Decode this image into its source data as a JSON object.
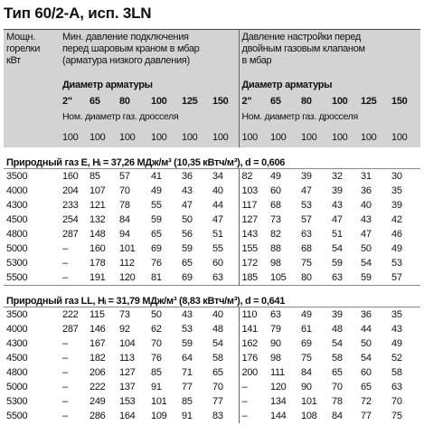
{
  "title": "Тип 60/2-A, исп. 3LN",
  "header": {
    "power": [
      "Мощн.",
      "горелки",
      "кВт"
    ],
    "left": {
      "lines": [
        "Мин. давление подключения",
        "перед шаровым краном в мбар",
        "(арматура низкого давления)"
      ],
      "diameter_label": "Диаметр арматуры",
      "diameters": [
        "2\"",
        "65",
        "80",
        "100",
        "125",
        "150"
      ],
      "throttle_label": "Ном. диаметр газ. дросселя",
      "throttle": [
        "100",
        "100",
        "100",
        "100",
        "100",
        "100"
      ]
    },
    "right": {
      "lines": [
        "Давление настройки перед",
        "двойным газовым клапаном",
        "в мбар"
      ],
      "diameter_label": "Диаметр арматуры",
      "diameters": [
        "2\"",
        "65",
        "80",
        "100",
        "125",
        "150"
      ],
      "throttle_label": "Ном. диаметр газ. дросселя",
      "throttle": [
        "100",
        "100",
        "100",
        "100",
        "100",
        "100"
      ]
    }
  },
  "sections": [
    {
      "title": "Природный газ E, Hᵢ = 37,26 МДж/м³ (10,35 кВтч/м³), d = 0,606",
      "rows": [
        [
          "3500",
          "160",
          "85",
          "57",
          "41",
          "36",
          "34",
          "82",
          "49",
          "39",
          "32",
          "31",
          "30"
        ],
        [
          "4000",
          "204",
          "107",
          "70",
          "49",
          "43",
          "40",
          "103",
          "60",
          "47",
          "39",
          "36",
          "35"
        ],
        [
          "4300",
          "233",
          "121",
          "78",
          "55",
          "47",
          "44",
          "117",
          "68",
          "53",
          "43",
          "40",
          "39"
        ],
        [
          "4500",
          "254",
          "132",
          "84",
          "59",
          "50",
          "47",
          "127",
          "73",
          "57",
          "47",
          "43",
          "42"
        ],
        [
          "4800",
          "287",
          "148",
          "94",
          "65",
          "56",
          "51",
          "143",
          "82",
          "63",
          "51",
          "47",
          "46"
        ],
        [
          "5000",
          "–",
          "160",
          "101",
          "69",
          "59",
          "55",
          "155",
          "88",
          "68",
          "54",
          "50",
          "49"
        ],
        [
          "5300",
          "–",
          "178",
          "112",
          "76",
          "65",
          "60",
          "172",
          "98",
          "75",
          "59",
          "54",
          "53"
        ],
        [
          "5500",
          "–",
          "191",
          "120",
          "81",
          "69",
          "63",
          "185",
          "105",
          "80",
          "63",
          "59",
          "57"
        ]
      ]
    },
    {
      "title": "Природный газ LL, Hᵢ = 31,79 МДж/м³ (8,83 кВтч/м³), d = 0,641",
      "rows": [
        [
          "3500",
          "222",
          "115",
          "73",
          "50",
          "43",
          "40",
          "110",
          "63",
          "49",
          "39",
          "36",
          "35"
        ],
        [
          "4000",
          "287",
          "146",
          "92",
          "62",
          "53",
          "48",
          "141",
          "79",
          "61",
          "48",
          "44",
          "43"
        ],
        [
          "4300",
          "–",
          "167",
          "104",
          "70",
          "59",
          "54",
          "162",
          "90",
          "69",
          "54",
          "50",
          "49"
        ],
        [
          "4500",
          "–",
          "182",
          "113",
          "76",
          "64",
          "58",
          "176",
          "98",
          "75",
          "58",
          "54",
          "52"
        ],
        [
          "4800",
          "–",
          "206",
          "127",
          "85",
          "71",
          "65",
          "200",
          "111",
          "84",
          "65",
          "60",
          "58"
        ],
        [
          "5000",
          "–",
          "222",
          "137",
          "91",
          "77",
          "70",
          "–",
          "120",
          "90",
          "70",
          "65",
          "63"
        ],
        [
          "5300",
          "–",
          "249",
          "153",
          "101",
          "85",
          "77",
          "–",
          "134",
          "101",
          "78",
          "72",
          "70"
        ],
        [
          "5500",
          "–",
          "286",
          "164",
          "109",
          "91",
          "83",
          "–",
          "144",
          "108",
          "84",
          "77",
          "75"
        ]
      ]
    }
  ]
}
